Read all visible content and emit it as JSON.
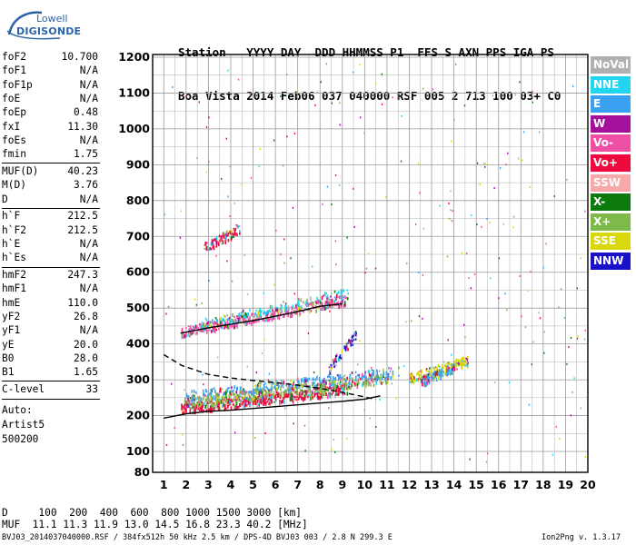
{
  "logo": {
    "brand_top": "Lowell",
    "brand_main": "DIGISONDE"
  },
  "header": {
    "row1": "Station   YYYY DAY  DDD HHMMSS P1  FFS S AXN PPS IGA PS",
    "row2": "Boa Vista 2014 Feb06 037 040000 RSF 005 2 713 100 03+ C0"
  },
  "params": [
    {
      "name": "foF2",
      "value": "10.700"
    },
    {
      "name": "foF1",
      "value": "N/A"
    },
    {
      "name": "foF1p",
      "value": "N/A"
    },
    {
      "name": "foE",
      "value": "N/A"
    },
    {
      "name": "foEp",
      "value": "0.48"
    },
    {
      "name": "fxI",
      "value": "11.30"
    },
    {
      "name": "foEs",
      "value": "N/A"
    },
    {
      "name": "fmin",
      "value": "1.75"
    },
    {
      "name": "MUF(D)",
      "value": "40.23"
    },
    {
      "name": "M(D)",
      "value": "3.76"
    },
    {
      "name": "D",
      "value": "N/A"
    },
    {
      "name": "h`F",
      "value": "212.5"
    },
    {
      "name": "h`F2",
      "value": "212.5"
    },
    {
      "name": "h`E",
      "value": "N/A"
    },
    {
      "name": "h`Es",
      "value": "N/A"
    },
    {
      "name": "hmF2",
      "value": "247.3"
    },
    {
      "name": "hmF1",
      "value": "N/A"
    },
    {
      "name": "hmE",
      "value": "110.0"
    },
    {
      "name": "yF2",
      "value": "26.8"
    },
    {
      "name": "yF1",
      "value": "N/A"
    },
    {
      "name": "yE",
      "value": "20.0"
    },
    {
      "name": "B0",
      "value": "28.0"
    },
    {
      "name": "B1",
      "value": "1.65"
    },
    {
      "name": "C-level",
      "value": "33"
    }
  ],
  "autoscaling": {
    "line1": "Auto:",
    "line2": "Artist5",
    "line3": "500200"
  },
  "legend": [
    {
      "label": "NoVal",
      "color": "#b0b0b0"
    },
    {
      "label": "NNE",
      "color": "#22d6f0"
    },
    {
      "label": "E",
      "color": "#3aa0f2"
    },
    {
      "label": "W",
      "color": "#a3109c"
    },
    {
      "label": "Vo-",
      "color": "#f04fa6"
    },
    {
      "label": "Vo+",
      "color": "#ee0a3f"
    },
    {
      "label": "SSW",
      "color": "#f7a8a8"
    },
    {
      "label": "X-",
      "color": "#0c7a0c"
    },
    {
      "label": "X+",
      "color": "#7fb94a"
    },
    {
      "label": "SSE",
      "color": "#d8d80a"
    },
    {
      "label": "NNW",
      "color": "#1a10c8"
    }
  ],
  "footer": {
    "d_row": "D     100  200  400  600  800 1000 1500 3000 [km]",
    "muf_row": "MUF  11.1 11.3 11.9 13.0 14.5 16.8 23.3 40.2 [MHz]",
    "file": "BVJ03_2014037040000.RSF / 384fx512h 50 kHz 2.5 km / DPS-4D BVJ03 003 / 2.8 N 299.3 E",
    "version": "Ion2Png v. 1.3.17"
  },
  "chart_data": {
    "type": "scatter",
    "title": "",
    "xlabel": "",
    "ylabel": "",
    "xlim": [
      0.5,
      20
    ],
    "ylim": [
      80,
      1200
    ],
    "x_ticks": [
      1,
      2,
      3,
      4,
      5,
      6,
      7,
      8,
      9,
      10,
      11,
      12,
      13,
      14,
      15,
      16,
      17,
      18,
      19,
      20
    ],
    "y_ticks": [
      80,
      100,
      200,
      300,
      400,
      500,
      600,
      700,
      800,
      900,
      1000,
      1100,
      1200
    ],
    "grid": true,
    "legend_position": "right",
    "clusters": [
      {
        "series": "Vo+",
        "x_range": [
          1.75,
          9.2
        ],
        "y_start": 215,
        "y_end": 270,
        "count": 520
      },
      {
        "series": "X+",
        "x_range": [
          1.9,
          11.0
        ],
        "y_start": 235,
        "y_end": 300,
        "count": 380
      },
      {
        "series": "E",
        "x_range": [
          1.9,
          11.5
        ],
        "y_start": 250,
        "y_end": 320,
        "count": 280
      },
      {
        "series": "Vo-",
        "x_range": [
          1.75,
          9.2
        ],
        "y_start": 430,
        "y_end": 520,
        "count": 420
      },
      {
        "series": "NNE",
        "x_range": [
          2.5,
          9.3
        ],
        "y_start": 450,
        "y_end": 540,
        "count": 140
      },
      {
        "series": "Vo+",
        "x_range": [
          2.8,
          4.4
        ],
        "y_start": 665,
        "y_end": 720,
        "count": 90
      },
      {
        "series": "NNW",
        "x_range": [
          8.4,
          9.6
        ],
        "y_start": 330,
        "y_end": 420,
        "count": 60
      },
      {
        "series": "SSE",
        "x_range": [
          12.0,
          14.6
        ],
        "y_start": 300,
        "y_end": 350,
        "count": 150
      },
      {
        "series": "E",
        "x_range": [
          12.5,
          14.0
        ],
        "y_start": 290,
        "y_end": 330,
        "count": 120
      }
    ],
    "trace_curve": {
      "name": "",
      "style": "solid",
      "x": [
        1.0,
        2.0,
        3.0,
        4.0,
        5.0,
        6.0,
        7.0,
        8.0,
        9.0,
        10.0,
        10.7
      ],
      "y": [
        193,
        205,
        212,
        215,
        220,
        225,
        230,
        235,
        240,
        246,
        255
      ]
    },
    "trace_curve_f2": {
      "name": "",
      "style": "solid",
      "x": [
        1.75,
        3.0,
        5.0,
        7.0,
        8.0,
        9.0
      ],
      "y": [
        430,
        445,
        465,
        490,
        505,
        512
      ]
    },
    "profile_curve": {
      "name": "",
      "style": "dashed",
      "x": [
        1.0,
        1.8,
        3.0,
        4.0,
        5.0,
        6.0,
        7.0,
        8.0,
        9.0,
        10.0,
        10.5
      ],
      "y": [
        370,
        340,
        315,
        305,
        298,
        292,
        285,
        276,
        265,
        252,
        245
      ]
    }
  }
}
